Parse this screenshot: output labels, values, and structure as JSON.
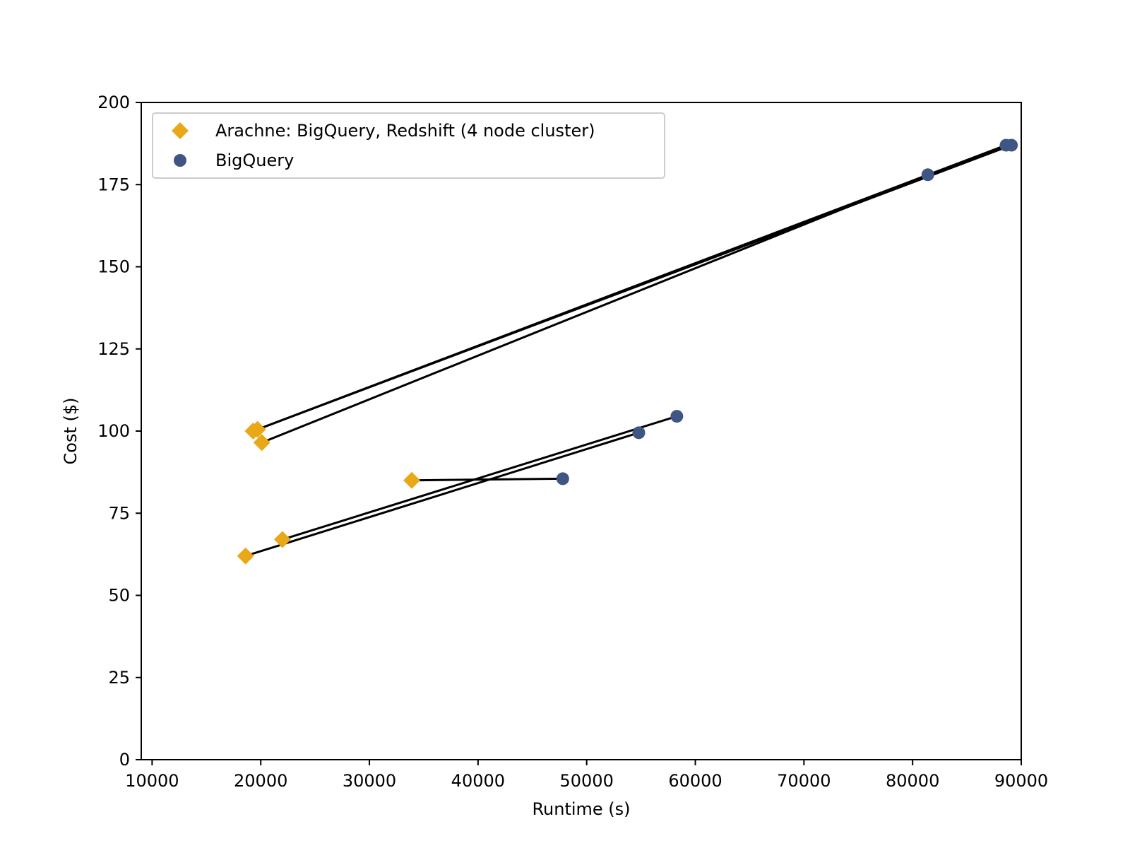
{
  "chart_data": {
    "type": "scatter",
    "title": "",
    "xlabel": "Runtime (s)",
    "ylabel": "Cost ($)",
    "xlim": [
      9000,
      90000
    ],
    "ylim": [
      0,
      200
    ],
    "xticks": [
      10000,
      20000,
      30000,
      40000,
      50000,
      60000,
      70000,
      80000,
      90000
    ],
    "yticks": [
      0,
      25,
      50,
      75,
      100,
      125,
      150,
      175,
      200
    ],
    "grid": false,
    "legend_placement": "top-left",
    "series": [
      {
        "name": "Arachne: BigQuery, Redshift (4 node cluster)",
        "marker": "diamond",
        "color": "#E8A817",
        "points": [
          {
            "x": 19300,
            "y": 100
          },
          {
            "x": 19700,
            "y": 100.5
          },
          {
            "x": 20100,
            "y": 96.5
          },
          {
            "x": 33900,
            "y": 85
          },
          {
            "x": 22000,
            "y": 67
          },
          {
            "x": 18600,
            "y": 62
          }
        ]
      },
      {
        "name": "BigQuery",
        "marker": "circle",
        "color": "#3F5584",
        "points": [
          {
            "x": 88600,
            "y": 187
          },
          {
            "x": 89100,
            "y": 187
          },
          {
            "x": 81400,
            "y": 178
          },
          {
            "x": 47800,
            "y": 85.5
          },
          {
            "x": 58300,
            "y": 104.5
          },
          {
            "x": 54800,
            "y": 99.5
          }
        ]
      }
    ],
    "connectors": [
      {
        "from": [
          19300,
          100
        ],
        "to": [
          88600,
          187
        ]
      },
      {
        "from": [
          19700,
          100.5
        ],
        "to": [
          89100,
          187
        ]
      },
      {
        "from": [
          20100,
          96.5
        ],
        "to": [
          81400,
          178
        ]
      },
      {
        "from": [
          33900,
          85
        ],
        "to": [
          47800,
          85.5
        ]
      },
      {
        "from": [
          22000,
          67
        ],
        "to": [
          58300,
          104.5
        ]
      },
      {
        "from": [
          18600,
          62
        ],
        "to": [
          54800,
          99.5
        ]
      }
    ]
  }
}
